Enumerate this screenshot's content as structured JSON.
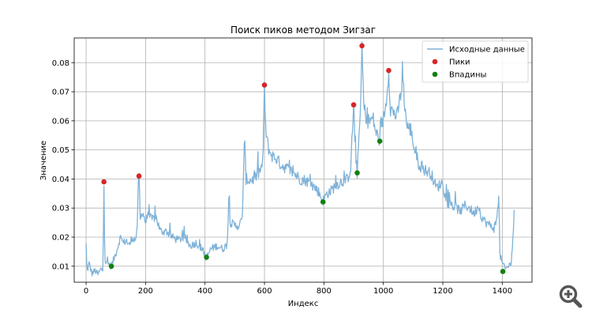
{
  "chart_data": {
    "type": "line",
    "title": "Поиск пиков методом Зигзаг",
    "xlabel": "Индекс",
    "ylabel": "Значение",
    "xlim": [
      -40,
      1500
    ],
    "ylim": [
      0.0045,
      0.0885
    ],
    "xticks": [
      0,
      200,
      400,
      600,
      800,
      1000,
      1200,
      1400
    ],
    "yticks": [
      0.01,
      0.02,
      0.03,
      0.04,
      0.05,
      0.06,
      0.07,
      0.08
    ],
    "grid": true,
    "legend_position": "top-right",
    "series": [
      {
        "name": "Исходные данные",
        "kind": "line",
        "color": "#7fb2d8",
        "anchors": [
          [
            0,
            0.0175
          ],
          [
            3,
            0.008
          ],
          [
            10,
            0.011
          ],
          [
            20,
            0.0075
          ],
          [
            30,
            0.0085
          ],
          [
            40,
            0.0072
          ],
          [
            50,
            0.009
          ],
          [
            57,
            0.0085
          ],
          [
            60,
            0.039
          ],
          [
            63,
            0.012
          ],
          [
            70,
            0.011
          ],
          [
            80,
            0.0105
          ],
          [
            85,
            0.01
          ],
          [
            95,
            0.013
          ],
          [
            105,
            0.016
          ],
          [
            115,
            0.02
          ],
          [
            125,
            0.018
          ],
          [
            135,
            0.019
          ],
          [
            145,
            0.017
          ],
          [
            155,
            0.02
          ],
          [
            165,
            0.019
          ],
          [
            172,
            0.022
          ],
          [
            175,
            0.038
          ],
          [
            178,
            0.041
          ],
          [
            182,
            0.026
          ],
          [
            190,
            0.029
          ],
          [
            200,
            0.025
          ],
          [
            210,
            0.028
          ],
          [
            220,
            0.026
          ],
          [
            235,
            0.027
          ],
          [
            250,
            0.022
          ],
          [
            270,
            0.022
          ],
          [
            290,
            0.02
          ],
          [
            310,
            0.019
          ],
          [
            330,
            0.02
          ],
          [
            350,
            0.017
          ],
          [
            370,
            0.018
          ],
          [
            390,
            0.016
          ],
          [
            405,
            0.013
          ],
          [
            420,
            0.016
          ],
          [
            440,
            0.017
          ],
          [
            460,
            0.016
          ],
          [
            475,
            0.0175
          ],
          [
            480,
            0.033
          ],
          [
            485,
            0.025
          ],
          [
            500,
            0.024
          ],
          [
            515,
            0.024
          ],
          [
            525,
            0.026
          ],
          [
            533,
            0.054
          ],
          [
            538,
            0.04
          ],
          [
            550,
            0.0395
          ],
          [
            565,
            0.04
          ],
          [
            580,
            0.042
          ],
          [
            590,
            0.044
          ],
          [
            595,
            0.046
          ],
          [
            600,
            0.072
          ],
          [
            605,
            0.055
          ],
          [
            615,
            0.05
          ],
          [
            625,
            0.048
          ],
          [
            640,
            0.047
          ],
          [
            655,
            0.045
          ],
          [
            670,
            0.044
          ],
          [
            685,
            0.043
          ],
          [
            700,
            0.042
          ],
          [
            720,
            0.04
          ],
          [
            740,
            0.0395
          ],
          [
            760,
            0.038
          ],
          [
            780,
            0.036
          ],
          [
            797,
            0.0325
          ],
          [
            810,
            0.035
          ],
          [
            825,
            0.036
          ],
          [
            840,
            0.038
          ],
          [
            860,
            0.039
          ],
          [
            880,
            0.04
          ],
          [
            890,
            0.044
          ],
          [
            900,
            0.0655
          ],
          [
            906,
            0.049
          ],
          [
            912,
            0.042
          ],
          [
            918,
            0.055
          ],
          [
            924,
            0.066
          ],
          [
            928,
            0.086
          ],
          [
            934,
            0.065
          ],
          [
            945,
            0.06
          ],
          [
            955,
            0.06
          ],
          [
            965,
            0.061
          ],
          [
            975,
            0.056
          ],
          [
            988,
            0.053
          ],
          [
            998,
            0.06
          ],
          [
            1008,
            0.065
          ],
          [
            1018,
            0.077
          ],
          [
            1024,
            0.064
          ],
          [
            1035,
            0.063
          ],
          [
            1045,
            0.061
          ],
          [
            1058,
            0.069
          ],
          [
            1066,
            0.074
          ],
          [
            1072,
            0.065
          ],
          [
            1080,
            0.058
          ],
          [
            1092,
            0.057
          ],
          [
            1105,
            0.05
          ],
          [
            1120,
            0.045
          ],
          [
            1140,
            0.043
          ],
          [
            1160,
            0.042
          ],
          [
            1178,
            0.037
          ],
          [
            1190,
            0.038
          ],
          [
            1200,
            0.039
          ],
          [
            1205,
            0.035
          ],
          [
            1215,
            0.032
          ],
          [
            1230,
            0.031
          ],
          [
            1245,
            0.03
          ],
          [
            1260,
            0.029
          ],
          [
            1275,
            0.031
          ],
          [
            1290,
            0.03
          ],
          [
            1305,
            0.028
          ],
          [
            1320,
            0.031
          ],
          [
            1330,
            0.027
          ],
          [
            1345,
            0.025
          ],
          [
            1360,
            0.024
          ],
          [
            1372,
            0.023
          ],
          [
            1382,
            0.026
          ],
          [
            1388,
            0.035
          ],
          [
            1392,
            0.014
          ],
          [
            1400,
            0.011
          ],
          [
            1410,
            0.009
          ],
          [
            1420,
            0.01
          ],
          [
            1430,
            0.011
          ],
          [
            1436,
            0.02
          ],
          [
            1440,
            0.028
          ]
        ]
      },
      {
        "name": "Пики",
        "kind": "scatter",
        "color": "#d62728",
        "points": [
          [
            60,
            0.039
          ],
          [
            178,
            0.041
          ],
          [
            600,
            0.0723
          ],
          [
            900,
            0.0655
          ],
          [
            928,
            0.0858
          ],
          [
            1018,
            0.0773
          ]
        ]
      },
      {
        "name": "Впадины",
        "kind": "scatter",
        "color": "#138013",
        "points": [
          [
            85,
            0.01
          ],
          [
            405,
            0.0131
          ],
          [
            797,
            0.0321
          ],
          [
            912,
            0.0421
          ],
          [
            988,
            0.053
          ],
          [
            1402,
            0.0082
          ]
        ]
      }
    ]
  },
  "toolbar": {
    "zoom_icon": "magnifier-plus-icon"
  }
}
